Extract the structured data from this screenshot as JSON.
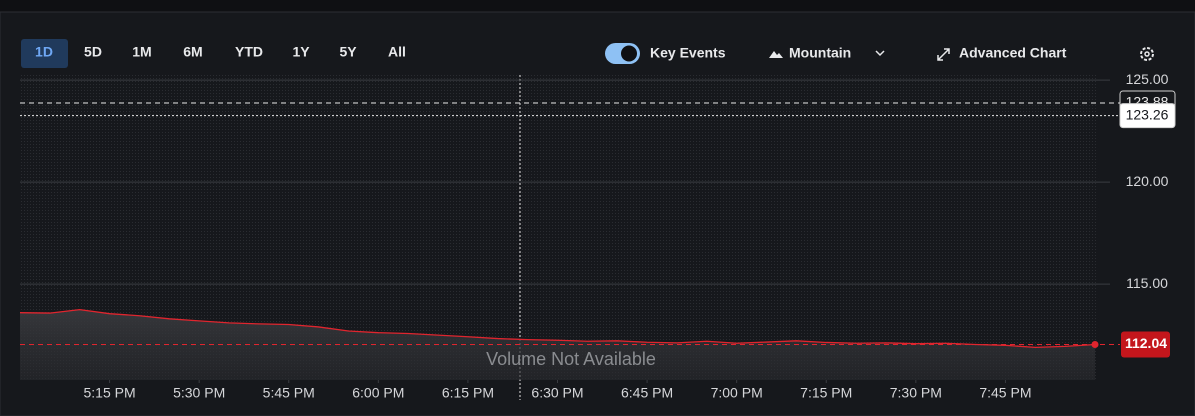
{
  "toolbar": {
    "ranges": [
      "1D",
      "5D",
      "1M",
      "6M",
      "YTD",
      "1Y",
      "5Y",
      "All"
    ],
    "key_events": "Key Events",
    "chart_style": "Mountain",
    "advanced": "Advanced Chart"
  },
  "chart_data": {
    "type": "area",
    "annotation": "Volume Not Available",
    "x": [
      0,
      5,
      10,
      15,
      20,
      25,
      30,
      35,
      40,
      45,
      50,
      55,
      60,
      65,
      70,
      75,
      80,
      85,
      90,
      95,
      100,
      105,
      110,
      115,
      120,
      125,
      130,
      135,
      140,
      145,
      150,
      155,
      160,
      165,
      170,
      175,
      180
    ],
    "series": [
      {
        "color": "#e0252e",
        "values": [
          113.6,
          113.58,
          113.75,
          113.55,
          113.45,
          113.3,
          113.2,
          113.1,
          113.05,
          113.02,
          112.9,
          112.7,
          112.62,
          112.58,
          112.5,
          112.42,
          112.33,
          112.28,
          112.25,
          112.2,
          112.22,
          112.15,
          112.12,
          112.2,
          112.1,
          112.16,
          112.22,
          112.14,
          112.1,
          112.12,
          112.08,
          112.1,
          112.04,
          112.0,
          111.9,
          111.95,
          112.04
        ]
      }
    ],
    "xlim": [
      0,
      180
    ],
    "xticks": [
      {
        "value": 15,
        "label": "5:15 PM"
      },
      {
        "value": 30,
        "label": "5:30 PM"
      },
      {
        "value": 45,
        "label": "5:45 PM"
      },
      {
        "value": 60,
        "label": "6:00 PM"
      },
      {
        "value": 75,
        "label": "6:15 PM"
      },
      {
        "value": 90,
        "label": "6:30 PM"
      },
      {
        "value": 105,
        "label": "6:45 PM"
      },
      {
        "value": 120,
        "label": "7:00 PM"
      },
      {
        "value": 135,
        "label": "7:15 PM"
      },
      {
        "value": 150,
        "label": "7:30 PM"
      },
      {
        "value": 165,
        "label": "7:45 PM"
      }
    ],
    "ylim": [
      110.3,
      125.25
    ],
    "yticks": [
      {
        "value": 115,
        "label": "115.00"
      },
      {
        "value": 120,
        "label": "120.00"
      },
      {
        "value": 125,
        "label": "125.00"
      }
    ],
    "grid": true,
    "reference_lines": [
      123.88,
      123.26
    ],
    "last_price": 112.04
  }
}
